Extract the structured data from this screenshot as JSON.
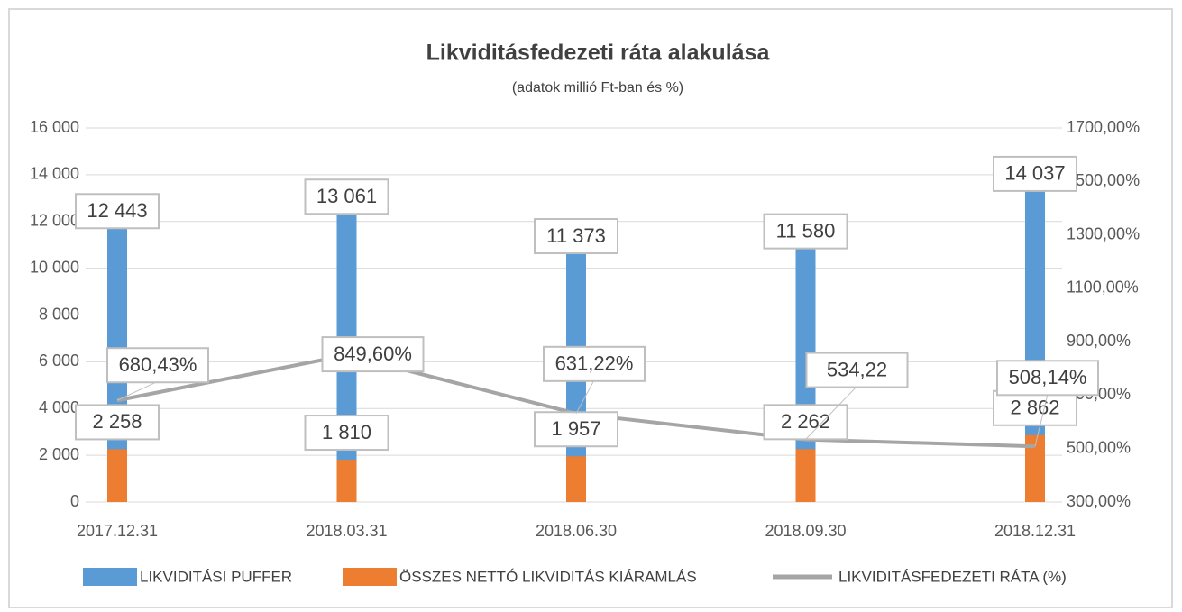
{
  "chart_data": {
    "type": "bar",
    "title": "Likviditásfedezeti ráta alakulása",
    "subtitle": "(adatok millió  Ft-ban és %)",
    "categories": [
      "2017.12.31",
      "2018.03.31",
      "2018.06.30",
      "2018.09.30",
      "2018.12.31"
    ],
    "series": [
      {
        "name": "LIKVIDITÁSI PUFFER",
        "type": "bar",
        "color": "#5b9bd5",
        "values": [
          12443,
          13061,
          11373,
          11580,
          14037
        ],
        "value_labels": [
          "12 443",
          "13 061",
          "11 373",
          "11 580",
          "14 037"
        ]
      },
      {
        "name": "ÖSSZES NETTÓ LIKVIDITÁS KIÁRAMLÁS",
        "type": "bar",
        "color": "#ed7d31",
        "values": [
          2258,
          1810,
          1957,
          2262,
          2862
        ],
        "value_labels": [
          "2 258",
          "1 810",
          "1 957",
          "2 262",
          "2 862"
        ]
      },
      {
        "name": "LIKVIDITÁSFEDEZETI RÁTA (%)",
        "type": "line",
        "color": "#a5a5a5",
        "axis": "y2",
        "values": [
          680.43,
          849.6,
          631.22,
          534.22,
          508.14
        ],
        "value_labels": [
          "680,43%",
          "849,60%",
          "631,22%",
          "534,22",
          "508,14%"
        ]
      }
    ],
    "ylim": [
      0,
      16000
    ],
    "yticks": [
      0,
      {
        "value": 2000,
        "label": "2 000"
      },
      {
        "value": 4000,
        "label": "4 000"
      },
      {
        "value": 6000,
        "label": "6 000"
      },
      {
        "value": 8000,
        "label": "8 000"
      },
      {
        "value": 10000,
        "label": "10 000"
      },
      {
        "value": 12000,
        "label": "12 000"
      },
      {
        "value": 14000,
        "label": "14 000"
      },
      {
        "value": 16000,
        "label": "16 000"
      }
    ],
    "y2lim": [
      300,
      1700
    ],
    "y2ticks": [
      {
        "value": 300,
        "label": "300,00%"
      },
      {
        "value": 500,
        "label": "500,00%"
      },
      {
        "value": 700,
        "label": "700,00%"
      },
      {
        "value": 900,
        "label": "900,00%"
      },
      {
        "value": 1100,
        "label": "1100,00%"
      },
      {
        "value": 1300,
        "label": "1300,00%"
      },
      {
        "value": 1500,
        "label": "1500,00%"
      },
      {
        "value": 1700,
        "label": "1700,00%"
      }
    ],
    "grid": true,
    "legend": "bottom"
  }
}
